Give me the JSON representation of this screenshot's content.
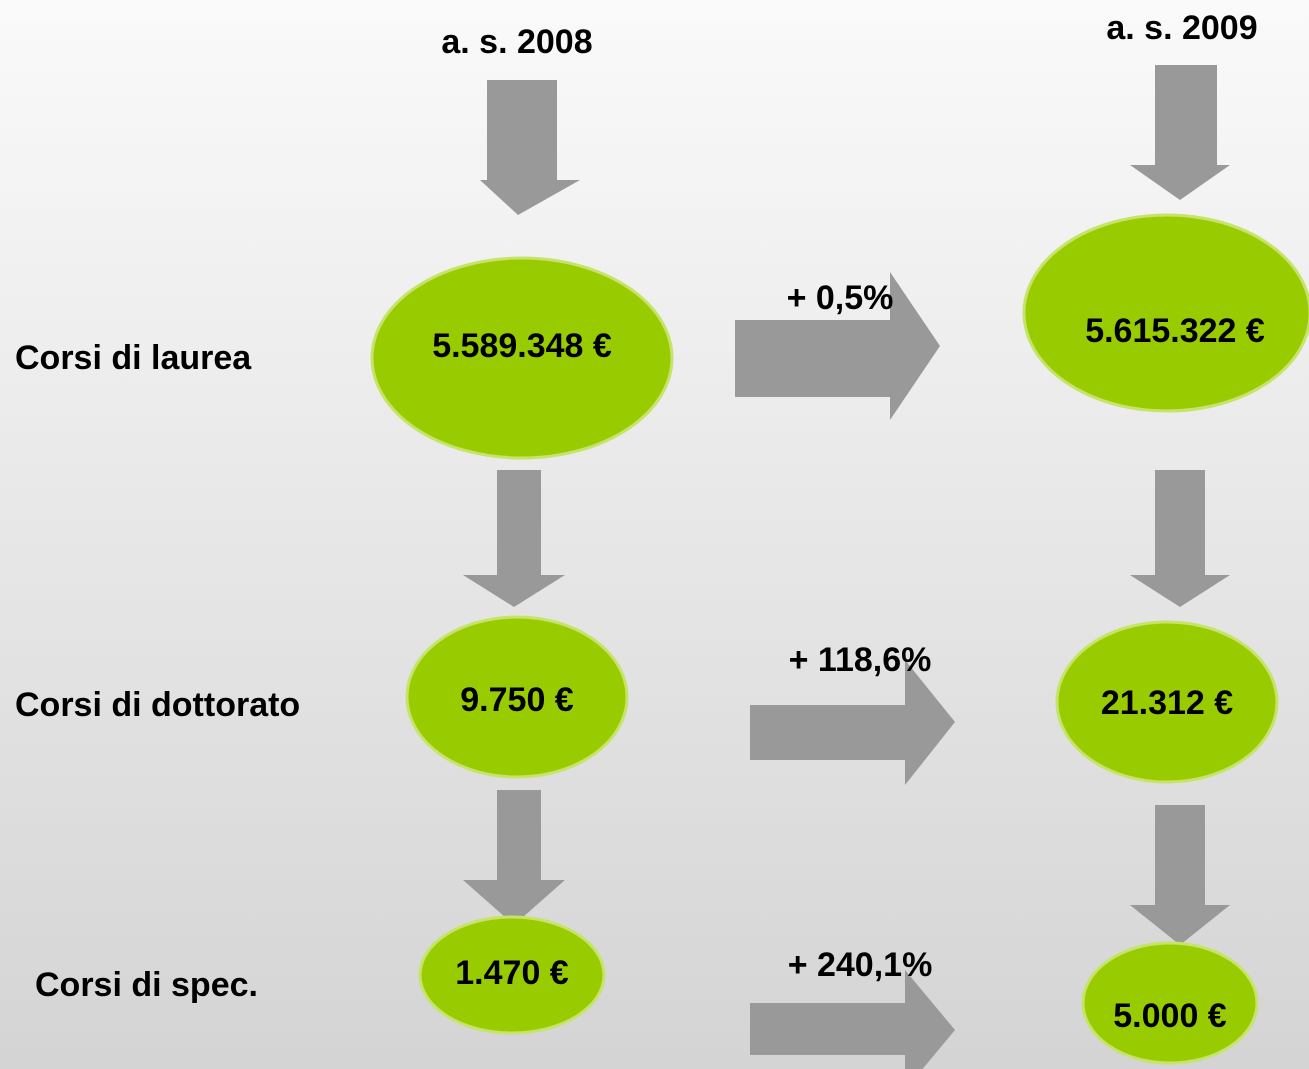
{
  "header": {
    "year_2008": "a. s. 2008",
    "year_2009": "a. s. 2009"
  },
  "rows": [
    {
      "label": "Corsi di laurea",
      "value_2008": "5.589.348 €",
      "change": "+ 0,5%",
      "value_2009": "5.615.322 €"
    },
    {
      "label": "Corsi di dottorato",
      "value_2008": "9.750 €",
      "change": "+ 118,6%",
      "value_2009": "21.312 €"
    },
    {
      "label": "Corsi di spec.",
      "value_2008": "1.470 €",
      "change": "+ 240,1%",
      "value_2009": "5.000 €"
    }
  ]
}
